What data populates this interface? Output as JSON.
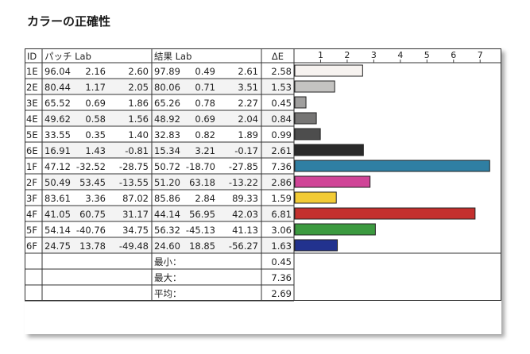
{
  "page_title": "カラーの正確性",
  "table": {
    "headers": {
      "id": "ID",
      "patch": "パッチ Lab",
      "result": "結果 Lab",
      "delta": "ΔE"
    },
    "summary": [
      {
        "label": "最小：",
        "value": "0.45"
      },
      {
        "label": "最大：",
        "value": "7.36"
      },
      {
        "label": "平均：",
        "value": "2.69"
      }
    ]
  },
  "chart_data": {
    "type": "bar",
    "orientation": "horizontal",
    "x_ticks": [
      "1",
      "2",
      "3",
      "4",
      "5",
      "6",
      "7"
    ],
    "xlim": [
      0,
      7.8
    ],
    "grid": false,
    "rows": [
      {
        "id": "1E",
        "patch": [
          "96.04",
          "2.16",
          "2.60"
        ],
        "result": [
          "97.89",
          "0.49",
          "2.61"
        ],
        "delta": 2.58,
        "color": "#f7f3f0"
      },
      {
        "id": "2E",
        "patch": [
          "80.44",
          "1.17",
          "2.05"
        ],
        "result": [
          "80.06",
          "0.71",
          "3.51"
        ],
        "delta": 1.53,
        "color": "#c4c3c1"
      },
      {
        "id": "3E",
        "patch": [
          "65.52",
          "0.69",
          "1.86"
        ],
        "result": [
          "65.26",
          "0.78",
          "2.27"
        ],
        "delta": 0.45,
        "color": "#a09f9e"
      },
      {
        "id": "4E",
        "patch": [
          "49.62",
          "0.58",
          "1.56"
        ],
        "result": [
          "48.92",
          "0.69",
          "2.04"
        ],
        "delta": 0.84,
        "color": "#767574"
      },
      {
        "id": "5E",
        "patch": [
          "33.55",
          "0.35",
          "1.40"
        ],
        "result": [
          "32.83",
          "0.82",
          "1.89"
        ],
        "delta": 0.99,
        "color": "#4d4d4d"
      },
      {
        "id": "6E",
        "patch": [
          "16.91",
          "1.43",
          "-0.81"
        ],
        "result": [
          "15.34",
          "3.21",
          "-0.17"
        ],
        "delta": 2.61,
        "color": "#2a2a2a"
      },
      {
        "id": "1F",
        "patch": [
          "47.12",
          "-32.52",
          "-28.75"
        ],
        "result": [
          "50.72",
          "-18.70",
          "-27.85"
        ],
        "delta": 7.36,
        "color": "#2f7fa3"
      },
      {
        "id": "2F",
        "patch": [
          "50.49",
          "53.45",
          "-13.55"
        ],
        "result": [
          "51.20",
          "63.18",
          "-13.22"
        ],
        "delta": 2.86,
        "color": "#d04497"
      },
      {
        "id": "3F",
        "patch": [
          "83.61",
          "3.36",
          "87.02"
        ],
        "result": [
          "85.86",
          "2.84",
          "89.33"
        ],
        "delta": 1.59,
        "color": "#f2cb35"
      },
      {
        "id": "4F",
        "patch": [
          "41.05",
          "60.75",
          "31.17"
        ],
        "result": [
          "44.14",
          "56.95",
          "42.03"
        ],
        "delta": 6.81,
        "color": "#c4302e"
      },
      {
        "id": "5F",
        "patch": [
          "54.14",
          "-40.76",
          "34.75"
        ],
        "result": [
          "56.32",
          "-45.13",
          "41.13"
        ],
        "delta": 3.06,
        "color": "#3c9a40"
      },
      {
        "id": "6F",
        "patch": [
          "24.75",
          "13.78",
          "-49.48"
        ],
        "result": [
          "24.60",
          "18.85",
          "-56.27"
        ],
        "delta": 1.63,
        "color": "#22328e"
      }
    ]
  }
}
